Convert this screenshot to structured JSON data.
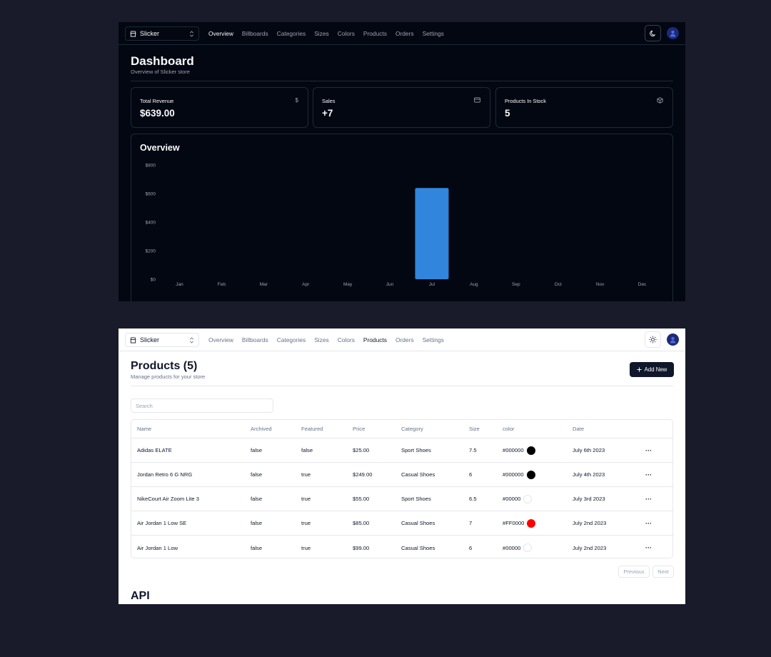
{
  "nav": {
    "store_name": "Slicker",
    "links": [
      "Overview",
      "Billboards",
      "Categories",
      "Sizes",
      "Colors",
      "Products",
      "Orders",
      "Settings"
    ]
  },
  "dashboard": {
    "title": "Dashboard",
    "subtitle": "Overview of Slicker store",
    "active_link": "Overview",
    "stats": [
      {
        "label": "Total Revenue",
        "value": "$639.00",
        "icon": "dollar-icon",
        "glyph": "$"
      },
      {
        "label": "Sales",
        "value": "+7",
        "icon": "credit-card-icon",
        "glyph": ""
      },
      {
        "label": "Products In Stock",
        "value": "5",
        "icon": "package-icon",
        "glyph": ""
      }
    ],
    "overview_title": "Overview"
  },
  "chart_data": {
    "type": "bar",
    "title": "Overview",
    "categories": [
      "Jan",
      "Feb",
      "Mar",
      "Apr",
      "May",
      "Jun",
      "Jul",
      "Aug",
      "Sep",
      "Oct",
      "Nov",
      "Dec"
    ],
    "values": [
      0,
      0,
      0,
      0,
      0,
      0,
      639,
      0,
      0,
      0,
      0,
      0
    ],
    "yticks": [
      "$0",
      "$200",
      "$400",
      "$600",
      "$800"
    ],
    "ylim": [
      0,
      800
    ],
    "bar_color": "#3185dc",
    "grid": false,
    "legend": "none"
  },
  "products": {
    "title": "Products (5)",
    "subtitle": "Manage products for your store",
    "active_link": "Products",
    "add_label": "Add New",
    "search_placeholder": "Search",
    "columns": [
      "Name",
      "Archived",
      "Featured",
      "Price",
      "Category",
      "Size",
      "color",
      "Date"
    ],
    "rows": [
      {
        "name": "Adidas ELATE",
        "archived": "false",
        "featured": "false",
        "price": "$25.00",
        "category": "Sport Shoes",
        "size": "7.5",
        "color": "#000000",
        "swatch": "#000000",
        "date": "July 6th 2023"
      },
      {
        "name": "Jordan Retro 6 G NRG",
        "archived": "false",
        "featured": "true",
        "price": "$249.00",
        "category": "Casual Shoes",
        "size": "6",
        "color": "#000000",
        "swatch": "#000000",
        "date": "July 4th 2023"
      },
      {
        "name": "NikeCourt Air Zoom Lite 3",
        "archived": "false",
        "featured": "true",
        "price": "$55.00",
        "category": "Sport Shoes",
        "size": "6.5",
        "color": "#00000",
        "swatch": "#ffffff",
        "date": "July 3rd 2023"
      },
      {
        "name": "Air Jordan 1 Low SE",
        "archived": "false",
        "featured": "true",
        "price": "$85.00",
        "category": "Casual Shoes",
        "size": "7",
        "color": "#FF0000",
        "swatch": "#ff0000",
        "date": "July 2nd 2023"
      },
      {
        "name": "Air Jordan 1 Low",
        "archived": "false",
        "featured": "true",
        "price": "$99.00",
        "category": "Casual Shoes",
        "size": "6",
        "color": "#00000",
        "swatch": "#ffffff",
        "date": "July 2nd 2023"
      }
    ],
    "row_action_label": "···",
    "previous_label": "Previous",
    "next_label": "Next",
    "api_title": "API"
  }
}
